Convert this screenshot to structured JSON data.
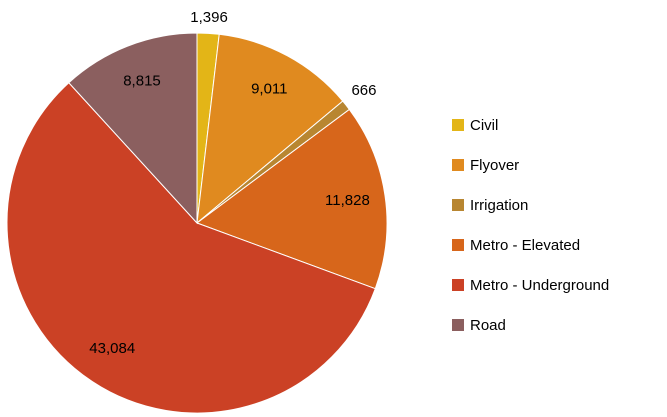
{
  "chart_data": {
    "type": "pie",
    "categories": [
      "Civil",
      "Flyover",
      "Irrigation",
      "Metro - Elevated",
      "Metro - Underground",
      "Road"
    ],
    "values": [
      1396,
      9011,
      666,
      11828,
      43084,
      8815
    ],
    "value_labels": [
      "1,396",
      "9,011",
      "666",
      "11,828",
      "43,084",
      "8,815"
    ],
    "colors": [
      "#e3b517",
      "#e08a1f",
      "#b88631",
      "#d7661b",
      "#cb4125",
      "#8b5f5f"
    ],
    "legend": "right"
  }
}
